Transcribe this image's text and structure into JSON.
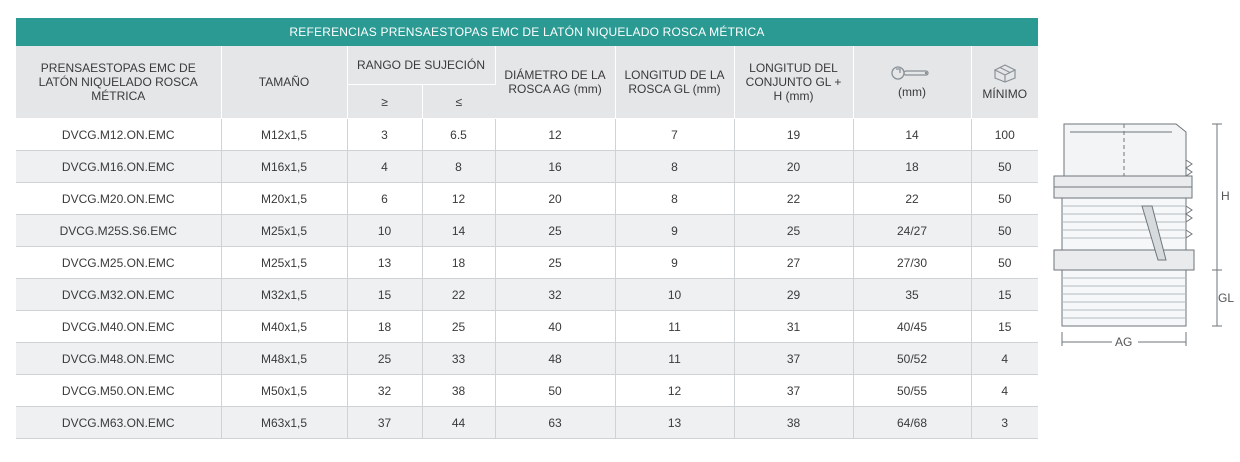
{
  "title": "REFERENCIAS PRENSAESTOPAS EMC DE LATÓN NIQUELADO ROSCA MÉTRICA",
  "headers": {
    "product": "PRENSAESTOPAS EMC DE LATÓN NIQUELADO ROSCA MÉTRICA",
    "size": "TAMAÑO",
    "range": "RANGO DE SUJECIÓN",
    "range_min": "≥",
    "range_max": "≤",
    "diameter": "DIÁMETRO DE LA ROSCA AG (mm)",
    "thread_length": "LONGITUD DE LA ROSCA GL (mm)",
    "assembly_length": "LONGITUD DEL CONJUNTO GL + H (mm)",
    "wrench_unit": "(mm)",
    "minimum": "MÍNIMO"
  },
  "icons": {
    "wrench": "wrench-icon",
    "box": "box-icon"
  },
  "rows": [
    [
      "DVCG.M12.ON.EMC",
      "M12x1,5",
      "3",
      "6.5",
      "12",
      "7",
      "19",
      "14",
      "100"
    ],
    [
      "DVCG.M16.ON.EMC",
      "M16x1,5",
      "4",
      "8",
      "16",
      "8",
      "20",
      "18",
      "50"
    ],
    [
      "DVCG.M20.ON.EMC",
      "M20x1,5",
      "6",
      "12",
      "20",
      "8",
      "22",
      "22",
      "50"
    ],
    [
      "DVCG.M25S.S6.EMC",
      "M25x1,5",
      "10",
      "14",
      "25",
      "9",
      "25",
      "24/27",
      "50"
    ],
    [
      "DVCG.M25.ON.EMC",
      "M25x1,5",
      "13",
      "18",
      "25",
      "9",
      "27",
      "27/30",
      "50"
    ],
    [
      "DVCG.M32.ON.EMC",
      "M32x1,5",
      "15",
      "22",
      "32",
      "10",
      "29",
      "35",
      "15"
    ],
    [
      "DVCG.M40.ON.EMC",
      "M40x1,5",
      "18",
      "25",
      "40",
      "11",
      "31",
      "40/45",
      "15"
    ],
    [
      "DVCG.M48.ON.EMC",
      "M48x1,5",
      "25",
      "33",
      "48",
      "11",
      "37",
      "50/52",
      "4"
    ],
    [
      "DVCG.M50.ON.EMC",
      "M50x1,5",
      "32",
      "38",
      "50",
      "12",
      "37",
      "50/55",
      "4"
    ],
    [
      "DVCG.M63.ON.EMC",
      "M63x1,5",
      "37",
      "44",
      "63",
      "13",
      "38",
      "64/68",
      "3"
    ]
  ],
  "drawing": {
    "h_label": "H",
    "gl_label": "GL",
    "ag_label": "AG"
  },
  "colors": {
    "banner": "#2a9a93",
    "header_bg": "#e4e6e8",
    "row_alt": "#eef0f1"
  }
}
